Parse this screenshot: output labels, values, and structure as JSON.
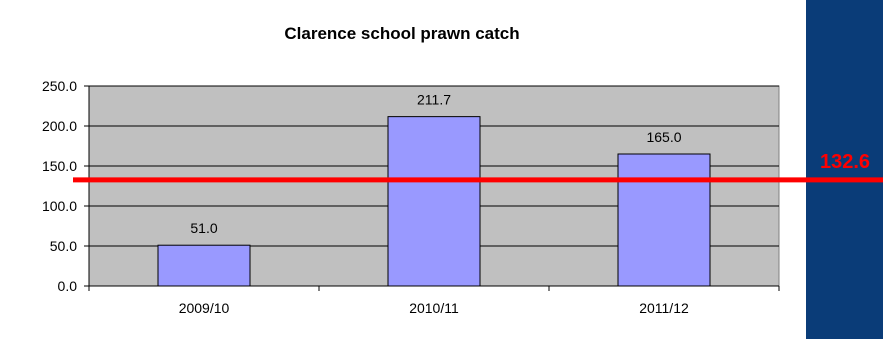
{
  "chart_data": {
    "type": "bar",
    "title": "Clarence school prawn catch",
    "xlabel": "",
    "ylabel": "",
    "categories": [
      "2009/10",
      "2010/11",
      "2011/12"
    ],
    "values": [
      51.0,
      211.7,
      165.0
    ],
    "value_labels": [
      "51.0",
      "211.7",
      "165.0"
    ],
    "ylim": [
      0,
      250
    ],
    "y_ticks": [
      0,
      50,
      100,
      150,
      200,
      250
    ],
    "y_tick_labels": [
      "0.0",
      "50.0",
      "100.0",
      "150.0",
      "200.0",
      "250.0"
    ],
    "grid": true,
    "legend": "none",
    "reference_line": {
      "value": 132.6,
      "label": "132.6",
      "color": "#ff0000"
    },
    "colors": {
      "bar_fill": "#9999ff",
      "plot_background": "#c0c0c0",
      "chart_background": "#ffffff",
      "page_background": "#0a3c78"
    }
  }
}
